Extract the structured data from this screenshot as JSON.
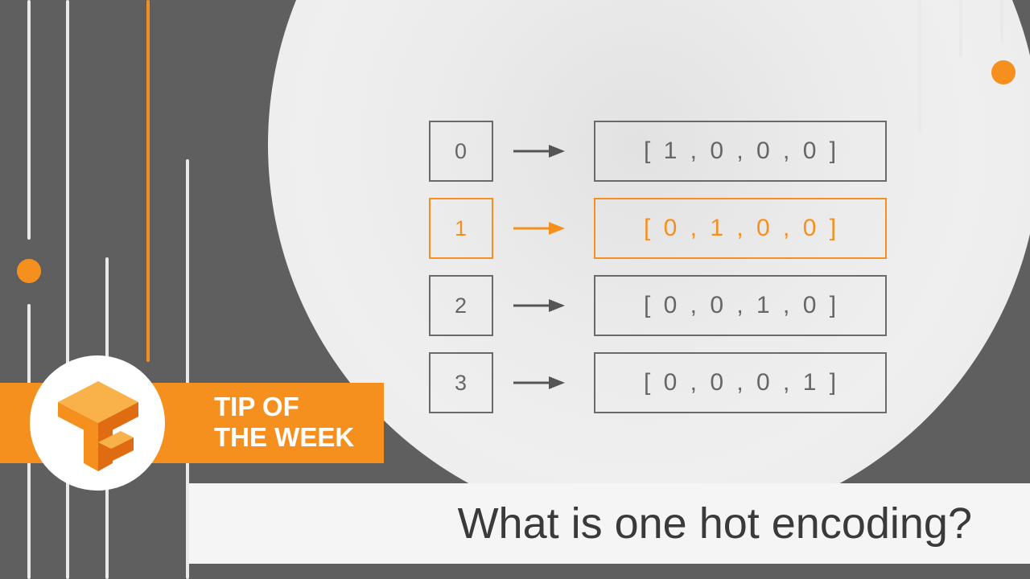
{
  "badge": {
    "line1": "TIP OF",
    "line2": "THE WEEK",
    "logo_icon": "tensorflow-logo-icon"
  },
  "title": "What is one hot encoding?",
  "mapping": [
    {
      "index": "0",
      "vector": "[ 1 , 0 , 0 , 0 ]",
      "highlighted": false
    },
    {
      "index": "1",
      "vector": "[ 0 , 1 , 0 , 0 ]",
      "highlighted": true
    },
    {
      "index": "2",
      "vector": "[ 0 , 0 , 1 , 0 ]",
      "highlighted": false
    },
    {
      "index": "3",
      "vector": "[ 0 , 0 , 0 , 1 ]",
      "highlighted": false
    }
  ],
  "colors": {
    "accent": "#f5901f",
    "background": "#5f5f5f",
    "box_border": "#6a6a6a"
  }
}
